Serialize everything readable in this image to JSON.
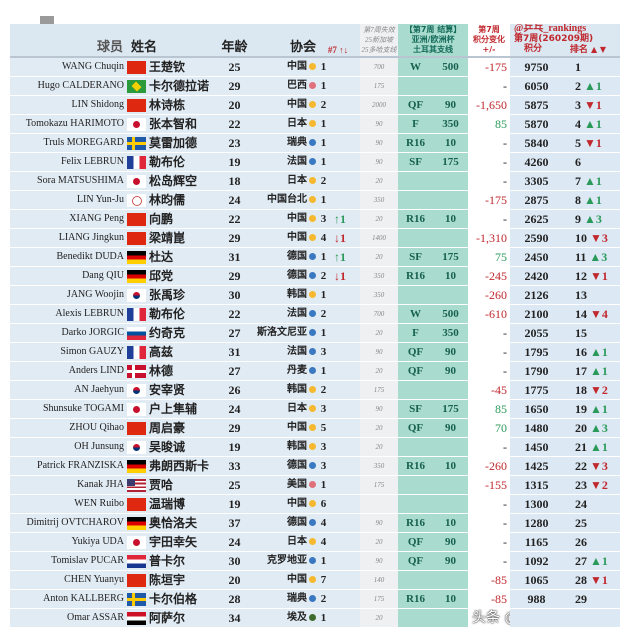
{
  "header": {
    "player": "球员",
    "name": "姓名",
    "age": "年龄",
    "association": "协会",
    "count": "#7 ↑↓",
    "lost": [
      "第7周失效",
      "25新加坡",
      "25多哈支线"
    ],
    "event": [
      "【第7周 结算】",
      "亚洲/欧洲杯",
      "土耳其支线"
    ],
    "change": [
      "第7周",
      "积分变化",
      "+/-"
    ],
    "source": "@乒乓_rankings",
    "period": "第7周(260209期)",
    "points": "积分",
    "rank": "排名",
    "rank_arrows": "▲ ▼"
  },
  "colors": {
    "asia": "#f5b82e",
    "europe": "#3a78c2",
    "americas": "#e0707a",
    "africa": "#3d6b2e"
  },
  "rows": [
    {
      "en": "WANG Chuqin",
      "flag": "cn",
      "cn": "王楚钦",
      "age": "25",
      "assoc": "中国",
      "cont": "asia",
      "cnt": "1",
      "arr": "",
      "lost": "700",
      "round": "W",
      "pts": "500",
      "chg": "-175",
      "points": "9750",
      "rank": "1",
      "move": ""
    },
    {
      "en": "Hugo CALDERANO",
      "flag": "br",
      "cn": "卡尔德拉诺",
      "age": "29",
      "assoc": "巴西",
      "cont": "americas",
      "cnt": "1",
      "arr": "",
      "lost": "175",
      "round": "",
      "pts": "",
      "chg": "-",
      "points": "6050",
      "rank": "2",
      "move": "▲1"
    },
    {
      "en": "LIN Shidong",
      "flag": "cn",
      "cn": "林诗栋",
      "age": "20",
      "assoc": "中国",
      "cont": "asia",
      "cnt": "2",
      "arr": "",
      "lost": "2000",
      "round": "QF",
      "pts": "90",
      "chg": "-1,650",
      "points": "5875",
      "rank": "3",
      "move": "▼1"
    },
    {
      "en": "Tomokazu HARIMOTO",
      "flag": "jp",
      "cn": "张本智和",
      "age": "22",
      "assoc": "日本",
      "cont": "asia",
      "cnt": "1",
      "arr": "",
      "lost": "90",
      "round": "F",
      "pts": "350",
      "chg": "85",
      "points": "5870",
      "rank": "4",
      "move": "▲1"
    },
    {
      "en": "Truls MOREGARD",
      "flag": "se",
      "cn": "莫雷加德",
      "age": "23",
      "assoc": "瑞典",
      "cont": "europe",
      "cnt": "1",
      "arr": "",
      "lost": "90",
      "round": "R16",
      "pts": "10",
      "chg": "-",
      "points": "5840",
      "rank": "5",
      "move": "▼1"
    },
    {
      "en": "Felix LEBRUN",
      "flag": "fr",
      "cn": "勒布伦",
      "age": "19",
      "assoc": "法国",
      "cont": "europe",
      "cnt": "1",
      "arr": "",
      "lost": "90",
      "round": "SF",
      "pts": "175",
      "chg": "-",
      "points": "4260",
      "rank": "6",
      "move": ""
    },
    {
      "en": "Sora MATSUSHIMA",
      "flag": "jp",
      "cn": "松岛辉空",
      "age": "18",
      "assoc": "日本",
      "cont": "asia",
      "cnt": "2",
      "arr": "",
      "lost": "20",
      "round": "",
      "pts": "",
      "chg": "-",
      "points": "3305",
      "rank": "7",
      "move": "▲1"
    },
    {
      "en": "LIN Yun-Ju",
      "flag": "tpe",
      "cn": "林昀儒",
      "age": "24",
      "assoc": "中国台北",
      "cont": "asia",
      "cnt": "1",
      "arr": "",
      "lost": "350",
      "round": "",
      "pts": "",
      "chg": "-175",
      "points": "2875",
      "rank": "8",
      "move": "▲1"
    },
    {
      "en": "XIANG Peng",
      "flag": "cn",
      "cn": "向鹏",
      "age": "22",
      "assoc": "中国",
      "cont": "asia",
      "cnt": "3",
      "arr": "↑1",
      "lost": "20",
      "round": "R16",
      "pts": "10",
      "chg": "-",
      "points": "2625",
      "rank": "9",
      "move": "▲3"
    },
    {
      "en": "LIANG Jingkun",
      "flag": "cn",
      "cn": "梁靖崑",
      "age": "29",
      "assoc": "中国",
      "cont": "asia",
      "cnt": "4",
      "arr": "↓1",
      "lost": "1400",
      "round": "",
      "pts": "",
      "chg": "-1,310",
      "points": "2590",
      "rank": "10",
      "move": "▼3"
    },
    {
      "en": "Benedikt DUDA",
      "flag": "de",
      "cn": "杜达",
      "age": "31",
      "assoc": "德国",
      "cont": "europe",
      "cnt": "1",
      "arr": "↑1",
      "lost": "20",
      "round": "SF",
      "pts": "175",
      "chg": "75",
      "points": "2450",
      "rank": "11",
      "move": "▲3"
    },
    {
      "en": "Dang QIU",
      "flag": "de",
      "cn": "邱党",
      "age": "29",
      "assoc": "德国",
      "cont": "europe",
      "cnt": "2",
      "arr": "↓1",
      "lost": "350",
      "round": "R16",
      "pts": "10",
      "chg": "-245",
      "points": "2420",
      "rank": "12",
      "move": "▼1"
    },
    {
      "en": "JANG Woojin",
      "flag": "kr",
      "cn": "张禹珍",
      "age": "30",
      "assoc": "韩国",
      "cont": "asia",
      "cnt": "1",
      "arr": "",
      "lost": "350",
      "round": "",
      "pts": "",
      "chg": "-260",
      "points": "2126",
      "rank": "13",
      "move": ""
    },
    {
      "en": "Alexis LEBRUN",
      "flag": "fr",
      "cn": "勒布伦",
      "age": "22",
      "assoc": "法国",
      "cont": "europe",
      "cnt": "2",
      "arr": "",
      "lost": "700",
      "round": "W",
      "pts": "500",
      "chg": "-610",
      "points": "2100",
      "rank": "14",
      "move": "▼4"
    },
    {
      "en": "Darko JORGIC",
      "flag": "si",
      "cn": "约奇克",
      "age": "27",
      "assoc": "斯洛文尼亚",
      "cont": "europe",
      "cnt": "1",
      "arr": "",
      "lost": "20",
      "round": "F",
      "pts": "350",
      "chg": "-",
      "points": "2055",
      "rank": "15",
      "move": ""
    },
    {
      "en": "Simon GAUZY",
      "flag": "fr",
      "cn": "高兹",
      "age": "31",
      "assoc": "法国",
      "cont": "europe",
      "cnt": "3",
      "arr": "",
      "lost": "90",
      "round": "QF",
      "pts": "90",
      "chg": "-",
      "points": "1795",
      "rank": "16",
      "move": "▲1"
    },
    {
      "en": "Anders LIND",
      "flag": "dk",
      "cn": "林德",
      "age": "27",
      "assoc": "丹麦",
      "cont": "europe",
      "cnt": "1",
      "arr": "",
      "lost": "20",
      "round": "QF",
      "pts": "90",
      "chg": "-",
      "points": "1790",
      "rank": "17",
      "move": "▲1"
    },
    {
      "en": "AN Jaehyun",
      "flag": "kr",
      "cn": "安宰贤",
      "age": "26",
      "assoc": "韩国",
      "cont": "asia",
      "cnt": "2",
      "arr": "",
      "lost": "175",
      "round": "",
      "pts": "",
      "chg": "-45",
      "points": "1775",
      "rank": "18",
      "move": "▼2"
    },
    {
      "en": "Shunsuke TOGAMI",
      "flag": "jp",
      "cn": "户上隼辅",
      "age": "24",
      "assoc": "日本",
      "cont": "asia",
      "cnt": "3",
      "arr": "",
      "lost": "90",
      "round": "SF",
      "pts": "175",
      "chg": "85",
      "points": "1650",
      "rank": "19",
      "move": "▲1"
    },
    {
      "en": "ZHOU Qihao",
      "flag": "cn",
      "cn": "周启豪",
      "age": "29",
      "assoc": "中国",
      "cont": "asia",
      "cnt": "5",
      "arr": "",
      "lost": "20",
      "round": "QF",
      "pts": "90",
      "chg": "70",
      "points": "1480",
      "rank": "20",
      "move": "▲3"
    },
    {
      "en": "OH Junsung",
      "flag": "kr",
      "cn": "吴晙诚",
      "age": "19",
      "assoc": "韩国",
      "cont": "asia",
      "cnt": "3",
      "arr": "",
      "lost": "20",
      "round": "",
      "pts": "",
      "chg": "-",
      "points": "1450",
      "rank": "21",
      "move": "▲1"
    },
    {
      "en": "Patrick FRANZISKA",
      "flag": "de",
      "cn": "弗朗西斯卡",
      "age": "33",
      "assoc": "德国",
      "cont": "europe",
      "cnt": "3",
      "arr": "",
      "lost": "350",
      "round": "R16",
      "pts": "10",
      "chg": "-260",
      "points": "1425",
      "rank": "22",
      "move": "▼3"
    },
    {
      "en": "Kanak JHA",
      "flag": "us",
      "cn": "贾哈",
      "age": "25",
      "assoc": "美国",
      "cont": "americas",
      "cnt": "1",
      "arr": "",
      "lost": "175",
      "round": "",
      "pts": "",
      "chg": "-155",
      "points": "1315",
      "rank": "23",
      "move": "▼2"
    },
    {
      "en": "WEN Ruibo",
      "flag": "cn",
      "cn": "温瑞博",
      "age": "19",
      "assoc": "中国",
      "cont": "asia",
      "cnt": "6",
      "arr": "",
      "lost": "",
      "round": "",
      "pts": "",
      "chg": "-",
      "points": "1300",
      "rank": "24",
      "move": ""
    },
    {
      "en": "Dimitrij OVTCHAROV",
      "flag": "de",
      "cn": "奥恰洛夫",
      "age": "37",
      "assoc": "德国",
      "cont": "europe",
      "cnt": "4",
      "arr": "",
      "lost": "90",
      "round": "R16",
      "pts": "10",
      "chg": "-",
      "points": "1280",
      "rank": "25",
      "move": ""
    },
    {
      "en": "Yukiya UDA",
      "flag": "jp",
      "cn": "宇田幸矢",
      "age": "24",
      "assoc": "日本",
      "cont": "asia",
      "cnt": "4",
      "arr": "",
      "lost": "20",
      "round": "QF",
      "pts": "90",
      "chg": "-",
      "points": "1165",
      "rank": "26",
      "move": ""
    },
    {
      "en": "Tomislav PUCAR",
      "flag": "hr",
      "cn": "普卡尔",
      "age": "30",
      "assoc": "克罗地亚",
      "cont": "europe",
      "cnt": "1",
      "arr": "",
      "lost": "90",
      "round": "QF",
      "pts": "90",
      "chg": "-",
      "points": "1092",
      "rank": "27",
      "move": "▲1"
    },
    {
      "en": "CHEN Yuanyu",
      "flag": "cn",
      "cn": "陈垣宇",
      "age": "20",
      "assoc": "中国",
      "cont": "asia",
      "cnt": "7",
      "arr": "",
      "lost": "140",
      "round": "",
      "pts": "",
      "chg": "-85",
      "points": "1065",
      "rank": "28",
      "move": "▼1"
    },
    {
      "en": "Anton KALLBERG",
      "flag": "se",
      "cn": "卡尔伯格",
      "age": "28",
      "assoc": "瑞典",
      "cont": "europe",
      "cnt": "2",
      "arr": "",
      "lost": "175",
      "round": "R16",
      "pts": "10",
      "chg": "-85",
      "points": "988",
      "rank": "29",
      "move": ""
    },
    {
      "en": "Omar ASSAR",
      "flag": "eg",
      "cn": "阿萨尔",
      "age": "34",
      "assoc": "埃及",
      "cont": "africa",
      "cnt": "1",
      "arr": "",
      "lost": "20",
      "round": "",
      "pts": "",
      "chg": "",
      "points": "",
      "rank": "",
      "move": ""
    }
  ],
  "watermark": "头条 @赛场观察者"
}
